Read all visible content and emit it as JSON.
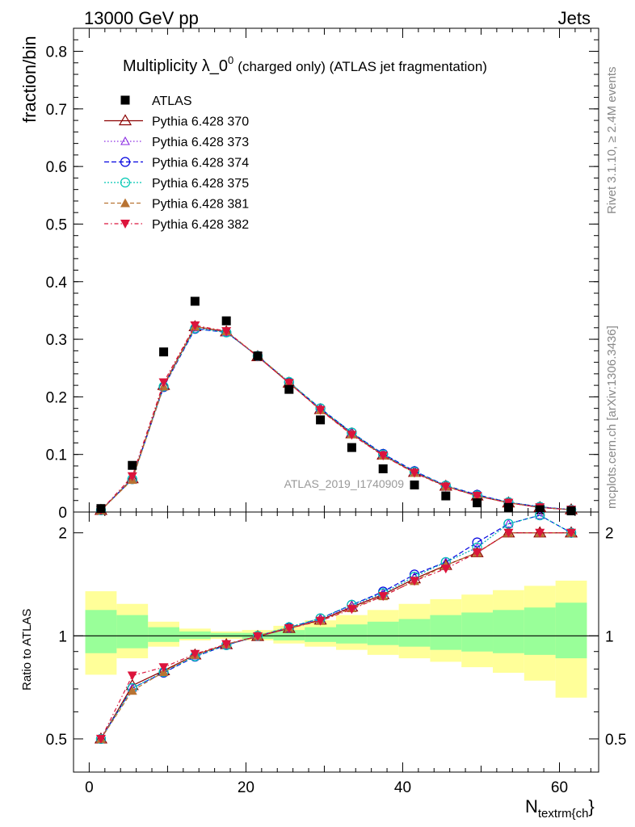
{
  "header": {
    "left": "13000 GeV pp",
    "right": "Jets",
    "side_top": "Rivet 3.1.10, ≥ 2.4M events",
    "side_bottom": "mcplots.cern.ch [arXiv:1306.3436]"
  },
  "chart_data": {
    "type": "line",
    "title": "Multiplicity λ_0",
    "title_sup": "0",
    "title_rest": "(charged only) (ATLAS jet fragmentation)",
    "ylabel": "fraction/bin",
    "ratio_ylabel": "Ratio to ATLAS",
    "xlabel": "N",
    "xlabel_sub": "textrm{ch",
    "xlabel_close": "}",
    "analysis": "ATLAS_2019_I1740909",
    "xlim": [
      -2,
      65
    ],
    "ylim": [
      0,
      0.84
    ],
    "ratio_ylim": [
      0.4,
      2.3
    ],
    "ratio_log": true,
    "x_ticks": [
      "0",
      "20",
      "40",
      "60"
    ],
    "y_ticks": [
      "0",
      "0.1",
      "0.2",
      "0.3",
      "0.4",
      "0.5",
      "0.6",
      "0.7",
      "0.8"
    ],
    "ratio_ticks": [
      "0.5",
      "1",
      "2"
    ],
    "x": [
      1.5,
      5.5,
      9.5,
      13.5,
      17.5,
      21.5,
      25.5,
      29.5,
      33.5,
      37.5,
      41.5,
      45.5,
      49.5,
      53.5,
      57.5,
      61.5
    ],
    "data": {
      "name": "ATLAS",
      "values": [
        0.006,
        0.081,
        0.278,
        0.366,
        0.332,
        0.271,
        0.213,
        0.16,
        0.112,
        0.075,
        0.047,
        0.028,
        0.016,
        0.008,
        0.004,
        0.002
      ]
    },
    "band_edges": [
      -0.5,
      3.5,
      7.5,
      11.5,
      15.5,
      19.5,
      23.5,
      27.5,
      31.5,
      35.5,
      39.5,
      43.5,
      47.5,
      51.5,
      55.5,
      59.5,
      63.5
    ],
    "band_inner": [
      [
        0.89,
        1.19
      ],
      [
        0.92,
        1.15
      ],
      [
        0.96,
        1.06
      ],
      [
        0.98,
        1.03
      ],
      [
        0.99,
        1.02
      ],
      [
        0.98,
        1.02
      ],
      [
        0.97,
        1.04
      ],
      [
        0.96,
        1.06
      ],
      [
        0.95,
        1.08
      ],
      [
        0.94,
        1.1
      ],
      [
        0.93,
        1.12
      ],
      [
        0.91,
        1.15
      ],
      [
        0.9,
        1.17
      ],
      [
        0.89,
        1.19
      ],
      [
        0.88,
        1.21
      ],
      [
        0.86,
        1.25
      ]
    ],
    "band_outer": [
      [
        0.77,
        1.35
      ],
      [
        0.86,
        1.24
      ],
      [
        0.93,
        1.1
      ],
      [
        0.97,
        1.05
      ],
      [
        0.98,
        1.03
      ],
      [
        0.97,
        1.04
      ],
      [
        0.95,
        1.07
      ],
      [
        0.93,
        1.11
      ],
      [
        0.91,
        1.15
      ],
      [
        0.88,
        1.19
      ],
      [
        0.86,
        1.24
      ],
      [
        0.84,
        1.28
      ],
      [
        0.81,
        1.32
      ],
      [
        0.78,
        1.36
      ],
      [
        0.74,
        1.4
      ],
      [
        0.66,
        1.45
      ]
    ],
    "series": [
      {
        "name": "Pythia 6.428 370",
        "color": "#8b0000",
        "marker": "triangle-open",
        "dash": "",
        "values": [
          0.003,
          0.058,
          0.22,
          0.322,
          0.313,
          0.27,
          0.224,
          0.178,
          0.136,
          0.099,
          0.069,
          0.045,
          0.028,
          0.016,
          0.008,
          0.004
        ]
      },
      {
        "name": "Pythia 6.428 373",
        "color": "#8a2be2",
        "marker": "triangle-open-small",
        "dash": "1.5,2.5",
        "values": [
          0.003,
          0.057,
          0.218,
          0.32,
          0.312,
          0.271,
          0.225,
          0.179,
          0.137,
          0.1,
          0.07,
          0.046,
          0.029,
          0.017,
          0.009,
          0.004
        ]
      },
      {
        "name": "Pythia 6.428 374",
        "color": "#0000e0",
        "marker": "circle-open",
        "dash": "6,3",
        "values": [
          0.003,
          0.057,
          0.217,
          0.318,
          0.312,
          0.271,
          0.225,
          0.18,
          0.138,
          0.101,
          0.071,
          0.046,
          0.03,
          0.017,
          0.009,
          0.004
        ]
      },
      {
        "name": "Pythia 6.428 375",
        "color": "#00c8b4",
        "marker": "circle-open-cyan",
        "dash": "2,2",
        "values": [
          0.003,
          0.057,
          0.218,
          0.319,
          0.312,
          0.271,
          0.226,
          0.18,
          0.138,
          0.1,
          0.07,
          0.046,
          0.029,
          0.017,
          0.009,
          0.004
        ]
      },
      {
        "name": "Pythia 6.428 381",
        "color": "#b87333",
        "marker": "triangle-filled",
        "dash": "5,3",
        "values": [
          0.003,
          0.056,
          0.218,
          0.322,
          0.314,
          0.271,
          0.225,
          0.177,
          0.135,
          0.098,
          0.068,
          0.045,
          0.028,
          0.016,
          0.008,
          0.004
        ]
      },
      {
        "name": "Pythia 6.428 382",
        "color": "#dc143c",
        "marker": "triangle-down-filled",
        "dash": "5,3,1.5,3",
        "values": [
          0.003,
          0.062,
          0.225,
          0.324,
          0.314,
          0.27,
          0.224,
          0.177,
          0.134,
          0.098,
          0.068,
          0.044,
          0.028,
          0.016,
          0.008,
          0.004
        ]
      }
    ]
  }
}
